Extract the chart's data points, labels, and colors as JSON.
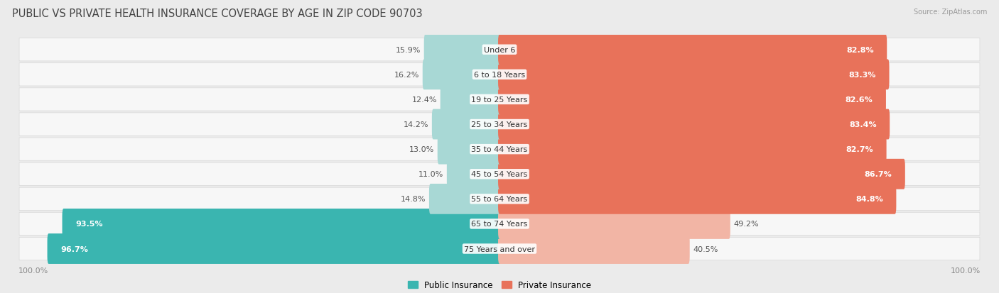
{
  "title": "PUBLIC VS PRIVATE HEALTH INSURANCE COVERAGE BY AGE IN ZIP CODE 90703",
  "source": "Source: ZipAtlas.com",
  "categories": [
    "Under 6",
    "6 to 18 Years",
    "19 to 25 Years",
    "25 to 34 Years",
    "35 to 44 Years",
    "45 to 54 Years",
    "55 to 64 Years",
    "65 to 74 Years",
    "75 Years and over"
  ],
  "public_values": [
    15.9,
    16.2,
    12.4,
    14.2,
    13.0,
    11.0,
    14.8,
    93.5,
    96.7
  ],
  "private_values": [
    82.8,
    83.3,
    82.6,
    83.4,
    82.7,
    86.7,
    84.8,
    49.2,
    40.5
  ],
  "public_color_high": "#3ab5b0",
  "public_color_low": "#a8d8d5",
  "private_color_high": "#e8725a",
  "private_color_low": "#f2b5a5",
  "bg_color": "#ebebeb",
  "bar_bg_color": "#f7f7f7",
  "title_fontsize": 10.5,
  "label_fontsize": 8,
  "value_fontsize": 8,
  "axis_label_fontsize": 8,
  "legend_fontsize": 8.5
}
